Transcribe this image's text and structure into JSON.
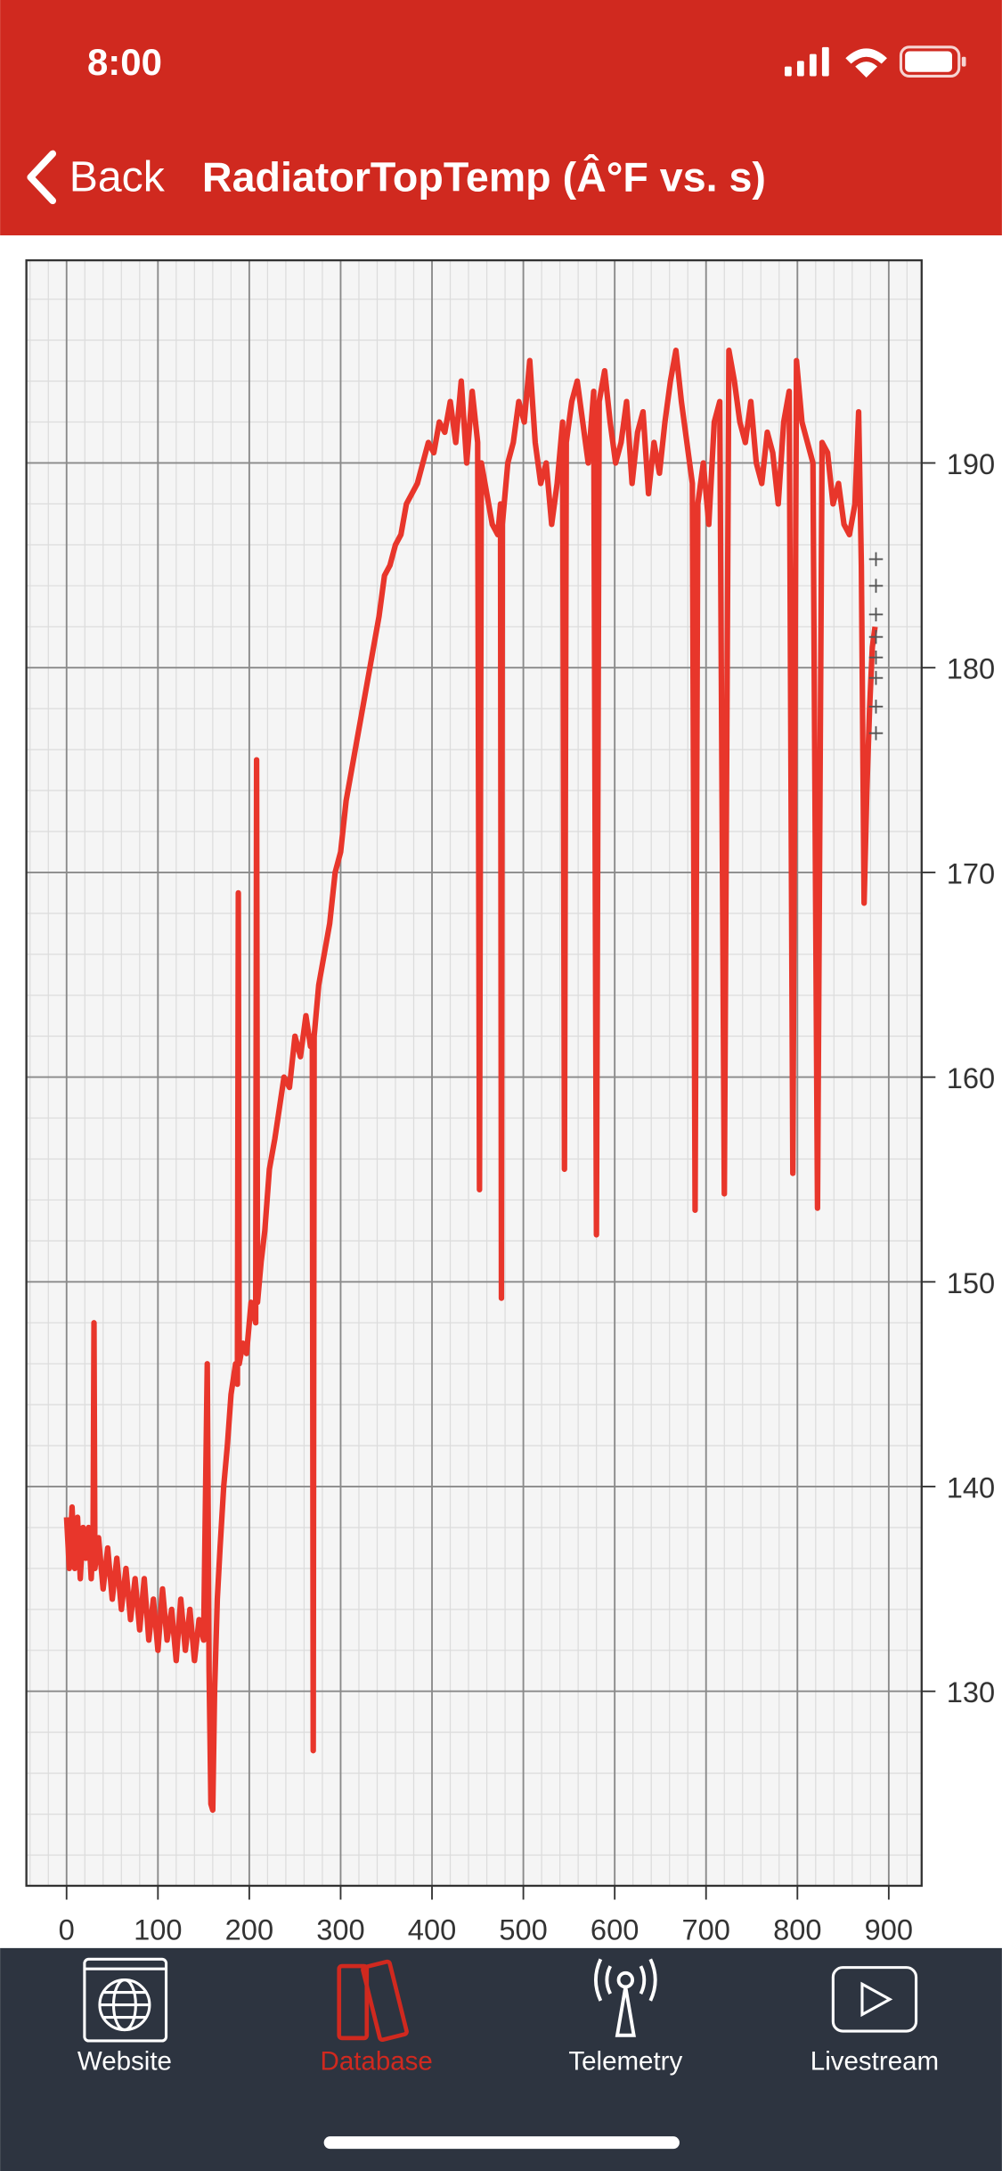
{
  "status_bar": {
    "time": "8:00"
  },
  "nav": {
    "back": "Back",
    "title": "RadiatorTopTemp (Â°F vs. s)"
  },
  "chart_data": {
    "type": "line",
    "series": [
      {
        "color": "#e8362b",
        "x": [
          0,
          3,
          6,
          9,
          12,
          15,
          18,
          21,
          24,
          27,
          29,
          30,
          31,
          35,
          40,
          45,
          50,
          55,
          60,
          65,
          70,
          75,
          80,
          85,
          90,
          95,
          100,
          105,
          110,
          115,
          120,
          125,
          130,
          135,
          140,
          145,
          150,
          154,
          156,
          158,
          160,
          162,
          165,
          168,
          172,
          176,
          180,
          185,
          187,
          188,
          189,
          193,
          197,
          202,
          207,
          208,
          209,
          213,
          217,
          222,
          228,
          233,
          238,
          244,
          250,
          256,
          262,
          267,
          269,
          270,
          271,
          276,
          282,
          288,
          294,
          300,
          306,
          312,
          318,
          324,
          330,
          336,
          342,
          348,
          354,
          360,
          366,
          372,
          378,
          384,
          390,
          396,
          402,
          408,
          414,
          420,
          426,
          432,
          438,
          444,
          450,
          452,
          454,
          460,
          466,
          472,
          475,
          476,
          477,
          483,
          489,
          495,
          501,
          507,
          513,
          519,
          525,
          531,
          537,
          543,
          545,
          547,
          553,
          559,
          565,
          571,
          577,
          580,
          583,
          589,
          595,
          601,
          607,
          613,
          619,
          625,
          631,
          637,
          643,
          649,
          655,
          661,
          667,
          673,
          679,
          685,
          688,
          691,
          697,
          703,
          709,
          715,
          720,
          725,
          731,
          737,
          743,
          749,
          755,
          761,
          767,
          773,
          779,
          785,
          791,
          795,
          799,
          805,
          811,
          817,
          822,
          827,
          833,
          839,
          845,
          851,
          857,
          863,
          867,
          870,
          873,
          876,
          879,
          882,
          885
        ],
        "values": [
          138.5,
          136,
          139,
          136,
          138.5,
          135.5,
          138,
          136.5,
          138,
          135.5,
          137.5,
          148,
          136,
          137.5,
          135,
          137,
          134.5,
          136.5,
          134,
          136,
          133.5,
          135.5,
          133,
          135.5,
          132.5,
          134.5,
          132,
          135,
          132.5,
          134,
          131.5,
          134.5,
          132,
          134,
          131.5,
          133.5,
          132.5,
          146,
          131,
          124.5,
          124.2,
          130,
          134.5,
          137,
          140,
          142,
          144.5,
          146,
          145,
          169,
          146,
          147,
          146.5,
          149,
          148,
          175.5,
          149,
          151,
          152.5,
          155.5,
          157,
          158.5,
          160,
          159.5,
          162,
          161,
          163,
          161.5,
          162,
          127.1,
          162,
          164.5,
          166,
          167.5,
          170,
          171,
          173.5,
          175,
          176.5,
          178,
          179.5,
          181,
          182.5,
          184.5,
          185,
          186,
          186.5,
          188,
          188.5,
          189,
          190,
          191,
          190.5,
          192,
          191.5,
          193,
          191,
          194,
          190,
          193.5,
          191,
          154.5,
          190,
          188.5,
          187,
          186.5,
          188,
          149.2,
          187,
          190,
          191,
          193,
          192,
          195,
          191,
          189,
          190,
          187,
          189,
          192,
          155.5,
          191,
          193,
          194,
          192,
          190,
          193.5,
          152.3,
          193,
          194.5,
          192,
          190,
          191,
          193,
          189,
          191.5,
          192.5,
          188.5,
          191,
          189.5,
          192,
          194,
          195.5,
          193,
          191,
          189,
          153.5,
          188,
          190,
          187,
          192,
          193,
          154.3,
          195.5,
          194,
          192,
          191,
          193,
          190,
          189,
          191.5,
          190.5,
          188,
          192,
          193.5,
          155.3,
          195,
          192,
          191,
          190,
          153.6,
          191,
          190.5,
          188,
          189,
          187,
          186.5,
          188,
          192.5,
          185,
          168.5,
          174,
          178,
          181,
          182
        ]
      },
      {
        "color": "#555555",
        "marker": "+",
        "x": [
          886,
          886,
          886,
          886,
          886,
          886,
          886,
          886
        ],
        "values": [
          185.3,
          184,
          182.6,
          181.5,
          180.5,
          179.5,
          178.1,
          176.8
        ]
      }
    ],
    "xlim": [
      -44,
      936
    ],
    "ylim": [
      120.5,
      199.9
    ],
    "xticks": [
      0,
      100,
      200,
      300,
      400,
      500,
      600,
      700,
      800,
      900
    ],
    "yticks": [
      130,
      140,
      150,
      160,
      170,
      180,
      190
    ],
    "y_axis_side": "right",
    "grid": true,
    "minor_subdivisions": 5
  },
  "tab_bar": {
    "items": [
      {
        "label": "Website"
      },
      {
        "label": "Database"
      },
      {
        "label": "Telemetry"
      },
      {
        "label": "Livestream"
      }
    ],
    "selected": 1,
    "selected_color": "#d0291f"
  }
}
